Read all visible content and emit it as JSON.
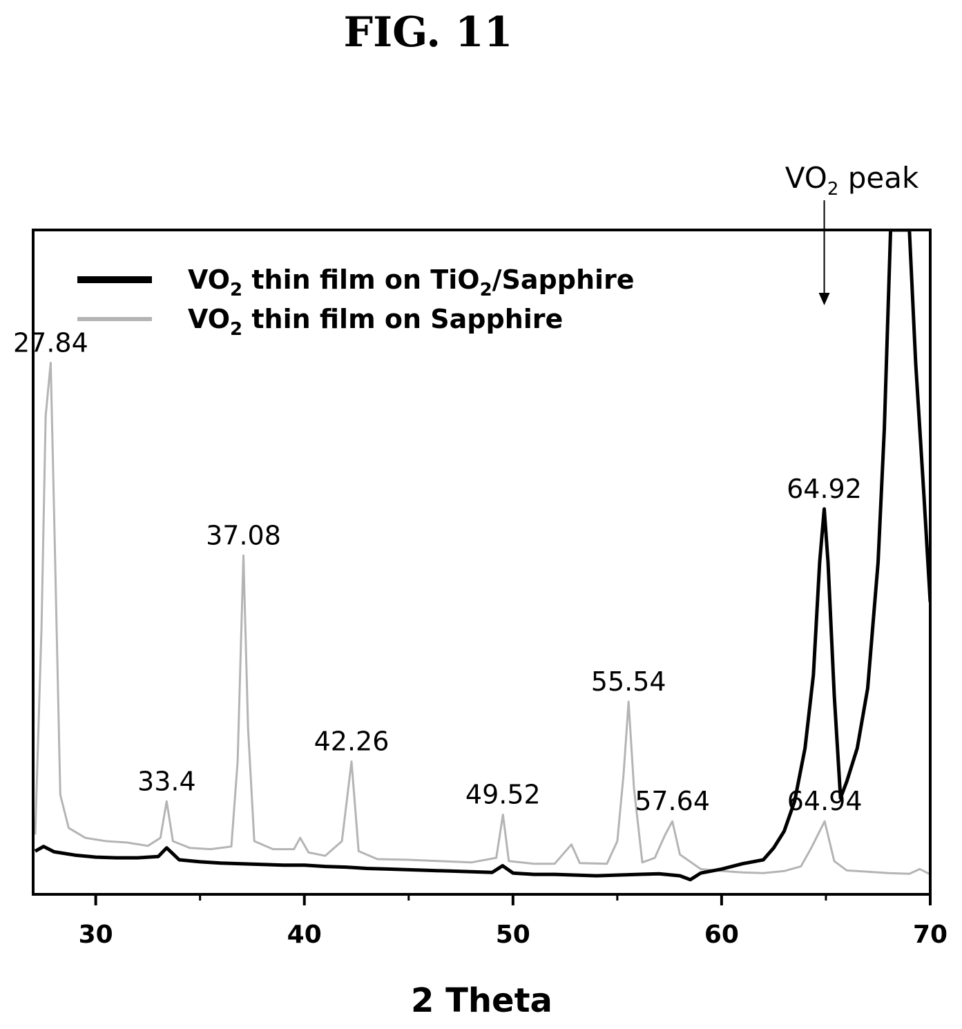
{
  "figure": {
    "title": "FIG. 11"
  },
  "chart_data": {
    "type": "line",
    "xlabel": "2 Theta",
    "ylabel": "",
    "xlim": [
      27,
      70
    ],
    "ylim": [
      0,
      100
    ],
    "x_ticks": [
      30,
      40,
      50,
      60,
      70
    ],
    "x_minor_ticks": [
      35,
      45,
      55,
      65
    ],
    "y_ticks": [],
    "grid": false,
    "legend_position": "top-left",
    "series": [
      {
        "name_parts": [
          "VO",
          "2",
          " thin film on TiO",
          "2",
          "/Sapphire"
        ],
        "color": "#000000",
        "points": [
          [
            27.1,
            6.5
          ],
          [
            27.5,
            7.2
          ],
          [
            28.0,
            6.4
          ],
          [
            29.0,
            5.9
          ],
          [
            30.0,
            5.6
          ],
          [
            31.0,
            5.5
          ],
          [
            32.0,
            5.5
          ],
          [
            33.0,
            5.7
          ],
          [
            33.4,
            7.0
          ],
          [
            34.0,
            5.2
          ],
          [
            35.0,
            4.9
          ],
          [
            36.0,
            4.7
          ],
          [
            37.0,
            4.6
          ],
          [
            38.0,
            4.5
          ],
          [
            39.0,
            4.4
          ],
          [
            40.0,
            4.4
          ],
          [
            41.0,
            4.2
          ],
          [
            42.0,
            4.1
          ],
          [
            43.0,
            3.9
          ],
          [
            44.0,
            3.8
          ],
          [
            45.0,
            3.7
          ],
          [
            46.0,
            3.6
          ],
          [
            47.0,
            3.5
          ],
          [
            48.0,
            3.4
          ],
          [
            49.0,
            3.3
          ],
          [
            49.5,
            4.3
          ],
          [
            50.0,
            3.2
          ],
          [
            51.0,
            3.0
          ],
          [
            52.0,
            3.0
          ],
          [
            53.0,
            2.9
          ],
          [
            54.0,
            2.8
          ],
          [
            55.0,
            2.9
          ],
          [
            56.0,
            3.0
          ],
          [
            57.0,
            3.1
          ],
          [
            58.0,
            2.8
          ],
          [
            58.5,
            2.2
          ],
          [
            59.0,
            3.2
          ],
          [
            60.0,
            3.8
          ],
          [
            61.0,
            4.6
          ],
          [
            62.0,
            5.2
          ],
          [
            62.5,
            7.0
          ],
          [
            63.0,
            9.5
          ],
          [
            63.5,
            14.0
          ],
          [
            64.0,
            22.0
          ],
          [
            64.4,
            33.0
          ],
          [
            64.7,
            50.0
          ],
          [
            64.92,
            58.0
          ],
          [
            65.1,
            50.0
          ],
          [
            65.4,
            30.0
          ],
          [
            65.7,
            14.5
          ],
          [
            66.0,
            17.0
          ],
          [
            66.5,
            22.0
          ],
          [
            67.0,
            31.0
          ],
          [
            67.5,
            50.0
          ],
          [
            67.8,
            70.0
          ],
          [
            68.1,
            100.0
          ],
          [
            69.0,
            100.0
          ],
          [
            69.3,
            80.0
          ],
          [
            69.7,
            60.0
          ],
          [
            70.0,
            44.0
          ]
        ]
      },
      {
        "name_parts": [
          "VO",
          "2",
          " thin film on Sapphire"
        ],
        "color": "#b4b4b4",
        "points": [
          [
            27.1,
            9.0
          ],
          [
            27.4,
            40.0
          ],
          [
            27.6,
            72.0
          ],
          [
            27.84,
            80.0
          ],
          [
            28.0,
            58.0
          ],
          [
            28.3,
            15.0
          ],
          [
            28.7,
            10.0
          ],
          [
            29.5,
            8.5
          ],
          [
            30.5,
            8.0
          ],
          [
            31.5,
            7.8
          ],
          [
            32.5,
            7.3
          ],
          [
            33.1,
            8.5
          ],
          [
            33.4,
            14.0
          ],
          [
            33.7,
            8.0
          ],
          [
            34.5,
            7.0
          ],
          [
            35.5,
            6.8
          ],
          [
            36.5,
            7.2
          ],
          [
            36.8,
            20.0
          ],
          [
            37.08,
            51.0
          ],
          [
            37.3,
            25.0
          ],
          [
            37.6,
            8.0
          ],
          [
            38.5,
            6.8
          ],
          [
            39.5,
            6.8
          ],
          [
            39.8,
            8.5
          ],
          [
            40.2,
            6.3
          ],
          [
            41.0,
            5.8
          ],
          [
            41.8,
            8.0
          ],
          [
            42.26,
            20.0
          ],
          [
            42.6,
            6.5
          ],
          [
            43.5,
            5.3
          ],
          [
            45.0,
            5.2
          ],
          [
            46.5,
            5.0
          ],
          [
            48.0,
            4.8
          ],
          [
            49.2,
            5.5
          ],
          [
            49.52,
            12.0
          ],
          [
            49.8,
            5.0
          ],
          [
            51.0,
            4.6
          ],
          [
            52.0,
            4.6
          ],
          [
            52.8,
            7.5
          ],
          [
            53.2,
            4.7
          ],
          [
            54.5,
            4.6
          ],
          [
            55.0,
            8.0
          ],
          [
            55.3,
            18.0
          ],
          [
            55.54,
            29.0
          ],
          [
            55.8,
            16.0
          ],
          [
            56.2,
            4.8
          ],
          [
            56.8,
            5.5
          ],
          [
            57.3,
            9.0
          ],
          [
            57.64,
            11.0
          ],
          [
            58.0,
            6.0
          ],
          [
            59.0,
            3.8
          ],
          [
            60.0,
            3.5
          ],
          [
            61.0,
            3.3
          ],
          [
            62.0,
            3.2
          ],
          [
            63.0,
            3.5
          ],
          [
            63.8,
            4.2
          ],
          [
            64.3,
            7.0
          ],
          [
            64.94,
            11.0
          ],
          [
            65.4,
            5.0
          ],
          [
            66.0,
            3.6
          ],
          [
            67.0,
            3.4
          ],
          [
            68.0,
            3.2
          ],
          [
            69.0,
            3.1
          ],
          [
            69.5,
            3.8
          ],
          [
            70.0,
            3.0
          ]
        ]
      }
    ],
    "annotations": [
      {
        "text": "27.84",
        "x": 27.84,
        "y": 80.0
      },
      {
        "text": "33.4",
        "x": 33.4,
        "y": 14.0
      },
      {
        "text": "37.08",
        "x": 37.08,
        "y": 51.0
      },
      {
        "text": "42.26",
        "x": 42.26,
        "y": 20.0
      },
      {
        "text": "49.52",
        "x": 49.52,
        "y": 12.0
      },
      {
        "text": "55.54",
        "x": 55.54,
        "y": 29.0
      },
      {
        "text": "57.64",
        "x": 57.64,
        "y": 11.0
      },
      {
        "text": "64.92",
        "x": 64.92,
        "y": 58.0
      },
      {
        "text": "64.94",
        "x": 64.94,
        "y": 11.0
      }
    ],
    "peak_annotation": {
      "text_parts": [
        "VO",
        "2",
        " peak"
      ],
      "x": 64.92,
      "arrow": "down"
    }
  }
}
